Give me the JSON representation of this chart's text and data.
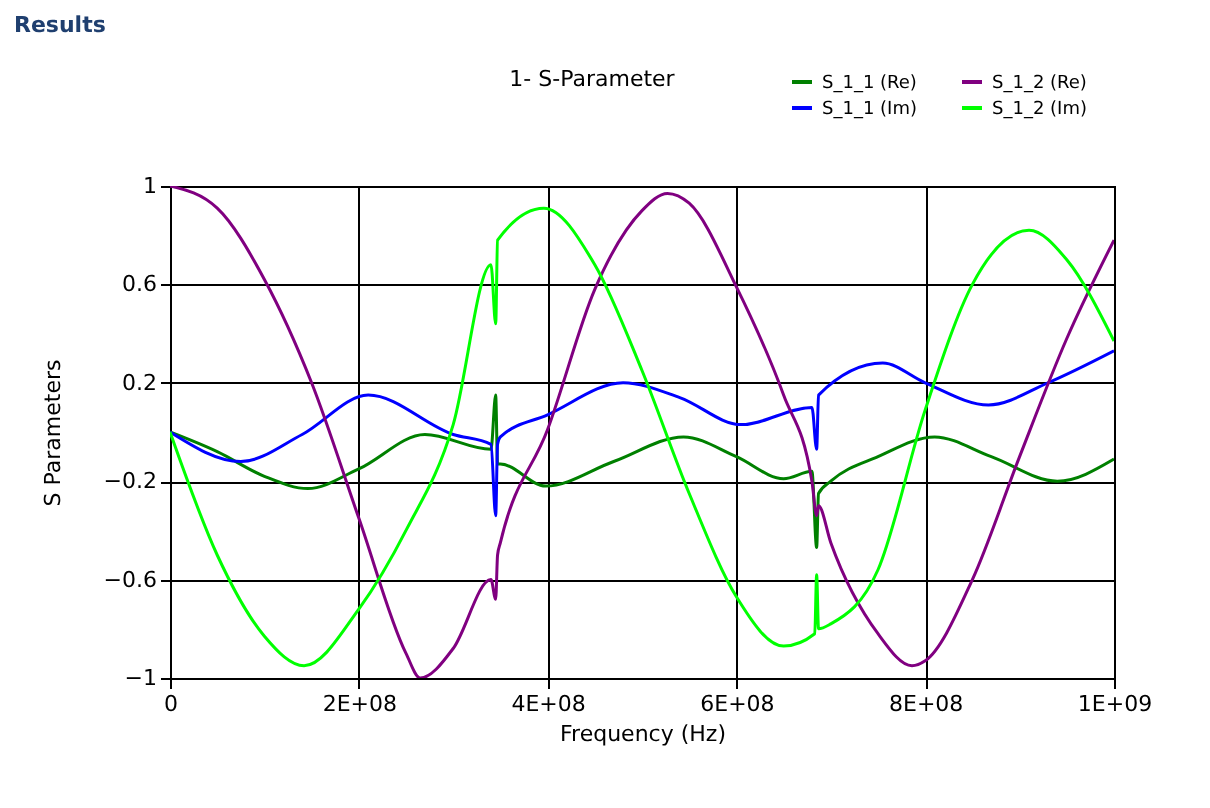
{
  "chart_data": {
    "type": "line",
    "title": "1- S-Parameter",
    "xlabel": "Frequency (Hz)",
    "ylabel": "S Parameters",
    "annotations": [
      "Results"
    ],
    "xlim": [
      0,
      1000000000
    ],
    "ylim": [
      -1,
      1
    ],
    "xticks": [
      0,
      {
        "value": 200000000,
        "label": "2E+08"
      },
      {
        "value": 400000000,
        "label": "4E+08"
      },
      {
        "value": 600000000,
        "label": "6E+08"
      },
      {
        "value": 800000000,
        "label": "8E+08"
      },
      {
        "value": 1000000000,
        "label": "1E+09"
      }
    ],
    "yticks": [
      -1,
      -0.6,
      -0.2,
      0.2,
      0.6,
      1
    ],
    "grid": true,
    "legend": "top right",
    "marker": "none",
    "line_style": "solid",
    "series": [
      {
        "name": "S_1_1 (Re)",
        "color": "#008000",
        "x": [
          0,
          50000000,
          100000000,
          146000000,
          200000000,
          270000000,
          340000000,
          345000000,
          347000000,
          350000000,
          398000000,
          470000000,
          544000000,
          600000000,
          650000000,
          680000000,
          685000000,
          687000000,
          700000000,
          750000000,
          810000000,
          870000000,
          940000000,
          1000000000
        ],
        "values": [
          0,
          -0.08,
          -0.18,
          -0.23,
          -0.15,
          -0.01,
          -0.07,
          0.15,
          -0.13,
          -0.13,
          -0.22,
          -0.12,
          -0.02,
          -0.1,
          -0.19,
          -0.16,
          -0.47,
          -0.25,
          -0.2,
          -0.1,
          -0.02,
          -0.1,
          -0.2,
          -0.11
        ]
      },
      {
        "name": "S_1_1 (Im)",
        "color": "#0000ff",
        "x": [
          0,
          75000000,
          140000000,
          210000000,
          300000000,
          340000000,
          345000000,
          347000000,
          350000000,
          400000000,
          480000000,
          540000000,
          605000000,
          680000000,
          685000000,
          687000000,
          755000000,
          800000000,
          867000000,
          930000000,
          1000000000
        ],
        "values": [
          0,
          -0.12,
          -0.01,
          0.15,
          -0.01,
          -0.05,
          -0.34,
          -0.05,
          -0.02,
          0.07,
          0.2,
          0.14,
          0.03,
          0.1,
          -0.07,
          0.15,
          0.28,
          0.2,
          0.11,
          0.2,
          0.33
        ]
      },
      {
        "name": "S_1_2 (Re)",
        "color": "#800080",
        "x": [
          0,
          50000000,
          100000000,
          150000000,
          200000000,
          250000000,
          265000000,
          300000000,
          340000000,
          345000000,
          347000000,
          350000000,
          400000000,
          450000000,
          500000000,
          527000000,
          550000000,
          600000000,
          650000000,
          680000000,
          685000000,
          687000000,
          700000000,
          750000000,
          786000000,
          800000000,
          850000000,
          900000000,
          950000000,
          1000000000
        ],
        "values": [
          1,
          0.91,
          0.62,
          0.2,
          -0.35,
          -0.9,
          -1,
          -0.88,
          -0.6,
          -0.68,
          -0.5,
          -0.45,
          0.01,
          0.58,
          0.9,
          0.97,
          0.93,
          0.59,
          0.15,
          -0.2,
          -0.34,
          -0.3,
          -0.45,
          -0.82,
          -0.95,
          -0.93,
          -0.6,
          -0.1,
          0.38,
          0.78
        ]
      },
      {
        "name": "S_1_2 (Im)",
        "color": "#00ff00",
        "x": [
          0,
          50000000,
          100000000,
          142000000,
          200000000,
          250000000,
          300000000,
          340000000,
          345000000,
          347000000,
          396000000,
          450000000,
          500000000,
          550000000,
          600000000,
          650000000,
          683000000,
          685000000,
          687000000,
          700000000,
          750000000,
          800000000,
          850000000,
          910000000,
          950000000,
          1000000000
        ],
        "values": [
          0,
          -0.5,
          -0.83,
          -0.95,
          -0.72,
          -0.4,
          0.03,
          0.68,
          0.44,
          0.78,
          0.91,
          0.68,
          0.25,
          -0.25,
          -0.67,
          -0.87,
          -0.82,
          -0.58,
          -0.8,
          -0.78,
          -0.56,
          0.09,
          0.6,
          0.82,
          0.7,
          0.37
        ]
      }
    ]
  }
}
